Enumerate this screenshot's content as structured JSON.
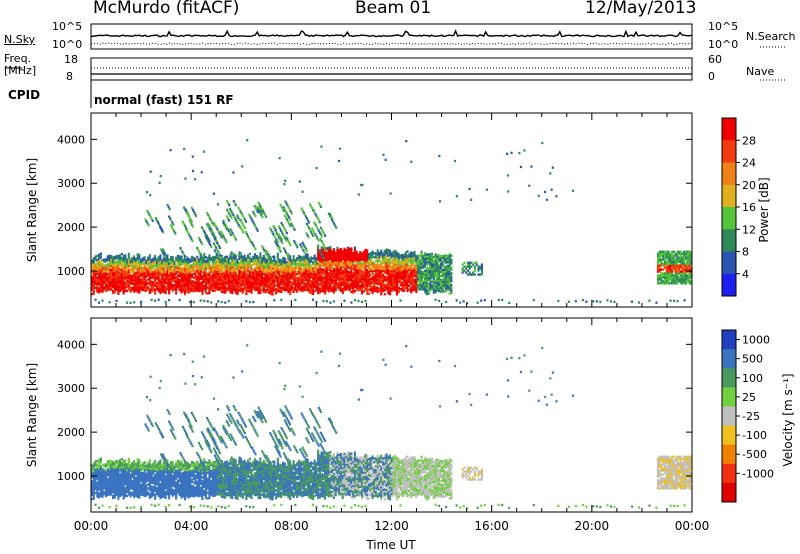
{
  "header": {
    "station": "McMurdo (fitACF)",
    "beam": "Beam 01",
    "date": "12/May/2013"
  },
  "top_panel": {
    "left_label": "N.Sky",
    "left_ticks": [
      "10^5",
      "10^0"
    ],
    "right_label": "N.Search",
    "right_ticks": [
      "10^5",
      "10^0"
    ]
  },
  "freq_panel": {
    "left_label_1": "Freq.",
    "left_label_2": "[MHz]",
    "left_ticks": [
      "18",
      "8"
    ],
    "right_label": "Nave",
    "right_ticks": [
      "60",
      "0"
    ]
  },
  "cpid": {
    "label": "CPID",
    "value": "normal (fast) 151 RF"
  },
  "chart_data": [
    {
      "type": "heatmap",
      "title": "",
      "xlabel": "",
      "ylabel": "Slant Range [km]",
      "xlim": [
        0,
        24
      ],
      "ylim": [
        180,
        4600
      ],
      "yticks": [
        "1000",
        "2000",
        "3000",
        "4000"
      ],
      "colorbar_label": "Power [dB]",
      "colorbar_ticks": [
        "4",
        "8",
        "12",
        "16",
        "20",
        "24",
        "28"
      ],
      "colors": [
        "#1e1ef0",
        "#2a55b0",
        "#2e8a5a",
        "#55c43a",
        "#e0b020",
        "#f08018",
        "#f03c10",
        "#f00000"
      ]
    },
    {
      "type": "heatmap",
      "title": "",
      "xlabel": "Time UT",
      "ylabel": "Slant Range [km]",
      "xlim": [
        0,
        24
      ],
      "ylim": [
        180,
        4600
      ],
      "xticks": [
        "00:00",
        "04:00",
        "08:00",
        "12:00",
        "16:00",
        "20:00",
        "00:00"
      ],
      "yticks": [
        "1000",
        "2000",
        "3000",
        "4000"
      ],
      "colorbar_label": "Velocity [m s⁻¹]",
      "colorbar_ticks": [
        "1000",
        "500",
        "100",
        "25",
        "-25",
        "-100",
        "-500",
        "-1000"
      ],
      "colors": [
        "#2040c0",
        "#3a74c0",
        "#4a9a60",
        "#70d040",
        "#c0c0c0",
        "#f0c020",
        "#f08000",
        "#f03010",
        "#e00000"
      ]
    }
  ]
}
